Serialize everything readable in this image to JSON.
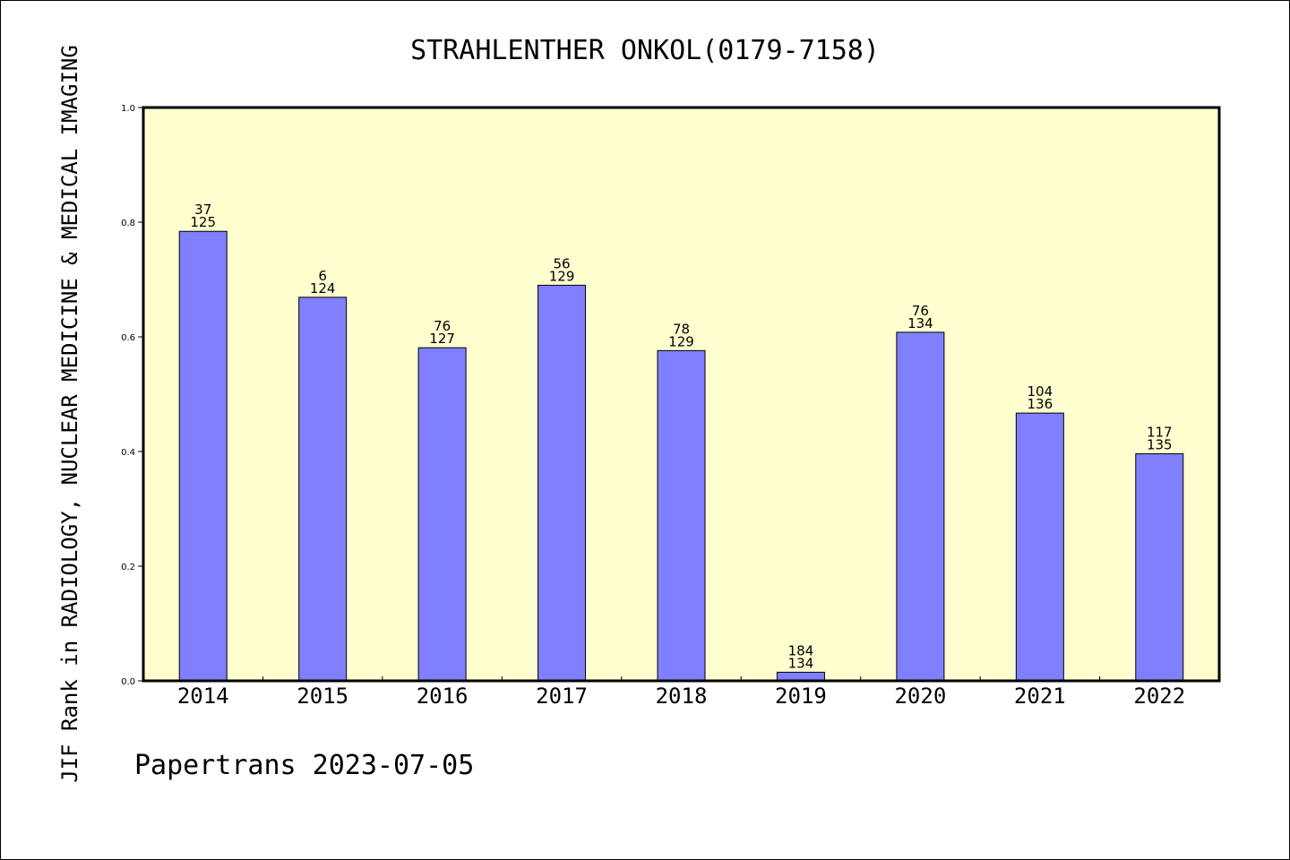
{
  "chart_data": {
    "type": "bar",
    "title": "STRAHLENTHER ONKOL(0179-7158)",
    "ylabel": "JIF Rank in RADIOLOGY, NUCLEAR MEDICINE & MEDICAL IMAGING",
    "xlabel": "",
    "footer": "Papertrans 2023-07-05",
    "categories": [
      "2014",
      "2015",
      "2016",
      "2017",
      "2018",
      "2019",
      "2020",
      "2021",
      "2022"
    ],
    "values": [
      0.784,
      0.669,
      0.581,
      0.69,
      0.576,
      0.015,
      0.608,
      0.467,
      0.396
    ],
    "labels_top": [
      "37",
      "6",
      "76",
      "56",
      "78",
      "184",
      "76",
      "104",
      "117"
    ],
    "labels_bottom": [
      "125",
      "124",
      "127",
      "129",
      "129",
      "134",
      "134",
      "136",
      "135"
    ],
    "ylim": [
      0,
      1.0
    ],
    "yticks": [
      "0.0",
      "0.2",
      "0.4",
      "0.6",
      "0.8",
      "1.0"
    ],
    "grid": false,
    "colors": {
      "bar": "#8080ff",
      "plot_background": "#ffffd0",
      "axis": "#000000"
    }
  }
}
